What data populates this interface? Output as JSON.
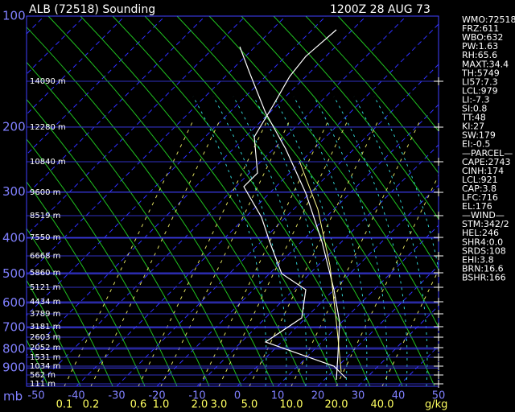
{
  "header": {
    "title": "ALB (72518) Sounding",
    "time": "1200Z  28 AUG 73"
  },
  "pressure_labels": [
    "100",
    "200",
    "300",
    "400",
    "500",
    "600",
    "700",
    "800",
    "900"
  ],
  "pressure_unit": "mb",
  "height_labels": [
    "14090 m",
    "12280 m",
    "10840 m",
    "9600 m",
    "8519 m",
    "7550 m",
    "6668 m",
    "5860 m",
    "5121 m",
    "4434 m",
    "3789 m",
    "3181 m",
    "2603 m",
    "2052 m",
    "1531 m",
    "1034 m",
    "562 m",
    "111 m"
  ],
  "temperature_labels": [
    "-50",
    "-40",
    "-30",
    "-20",
    "-10",
    "0",
    "10",
    "20",
    "30",
    "40",
    "50"
  ],
  "mixing_ratio_labels": [
    "0.1",
    "0.2",
    "0.6",
    "1.0",
    "2.0",
    "3.0",
    "5.0",
    "10.0",
    "20.0",
    "40.0"
  ],
  "mixing_ratio_unit": "g/kg",
  "stats": [
    "WMO:72518",
    "FRZ:611",
    "WBO:632",
    "PW:1.63",
    "RH:65.6",
    "MAXT:34.4",
    "TH:5749",
    "LI57:7.3",
    "LCL:979",
    "LI:-7.3",
    "SI:0.8",
    "TT:48",
    "KI:27",
    "SW:179",
    "EI:-0.5",
    "—PARCEL—",
    "CAPE:2743",
    "CINH:174",
    "LCL:921",
    "CAP:3.8",
    "LFC:716",
    "EL:176",
    "—WIND—",
    "STM:342/2",
    "HEL:246",
    "SHR4:0.0",
    "SRDS:108",
    "EHI:3.8",
    "BRN:16.6",
    "BSHR:166"
  ]
}
